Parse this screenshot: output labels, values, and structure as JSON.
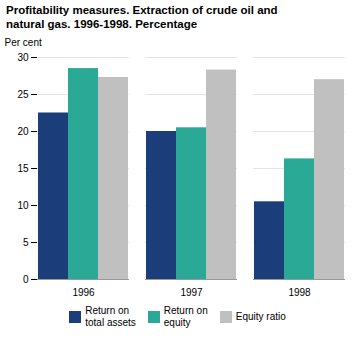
{
  "chart_data": {
    "type": "bar",
    "title": "Profitability measures. Extraction of crude oil and\nnatural gas. 1996-1998. Percentage",
    "ylabel": "Per cent",
    "categories": [
      "1996",
      "1997",
      "1998"
    ],
    "series": [
      {
        "name": "Return on\ntotal assets",
        "color": "#1b3d7a",
        "values": [
          22.5,
          20.0,
          10.5
        ]
      },
      {
        "name": "Return on\nequity",
        "color": "#2aaa96",
        "values": [
          28.5,
          20.5,
          16.3
        ]
      },
      {
        "name": "Equity ratio",
        "color": "#c0c0c0",
        "values": [
          27.3,
          28.3,
          27.0
        ]
      }
    ],
    "ylim": [
      0,
      30
    ],
    "yticks": [
      0,
      5,
      10,
      15,
      20,
      25,
      30
    ],
    "grid": true,
    "legend": "bottom"
  }
}
